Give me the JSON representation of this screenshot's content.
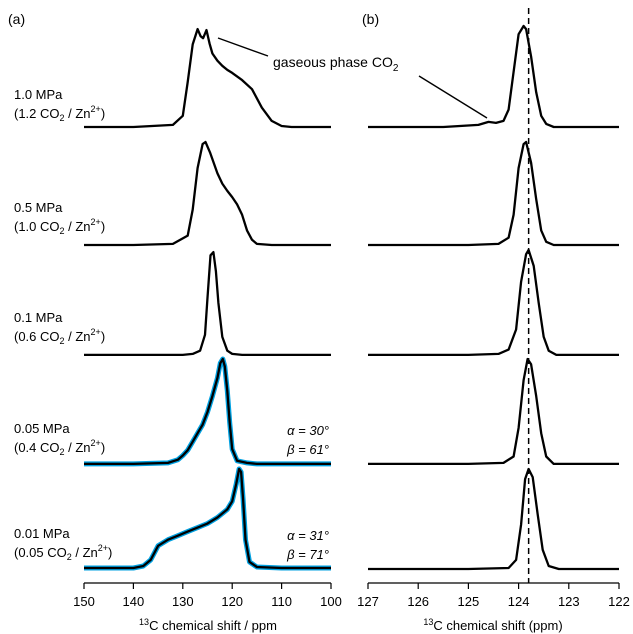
{
  "chart_data": [
    {
      "type": "line",
      "panel": "(a)",
      "xlabel_sup": "13",
      "xlabel_main": "C chemical shift / ppm",
      "xlim": [
        150,
        100
      ],
      "xticks": [
        150,
        140,
        130,
        120,
        110,
        100
      ],
      "annotation": {
        "text_main": "gaseous phase CO",
        "text_sub": "2"
      },
      "series": [
        {
          "pressure": "1.0 MPa",
          "uptake_main": "(1.2 CO",
          "uptake_sub": "2",
          "uptake_mid": " / Zn",
          "uptake_sup": "2+",
          "uptake_end": ")",
          "fit_params": null,
          "x": [
            150,
            140,
            132,
            130,
            129,
            128,
            127,
            126.4,
            125.9,
            125.2,
            124.6,
            124,
            123,
            122,
            121,
            120,
            118,
            116,
            114,
            112,
            110,
            108,
            100
          ],
          "y": [
            0.01,
            0.01,
            0.03,
            0.12,
            0.45,
            0.82,
            0.97,
            0.9,
            0.88,
            0.96,
            0.83,
            0.73,
            0.66,
            0.61,
            0.57,
            0.54,
            0.47,
            0.38,
            0.2,
            0.07,
            0.02,
            0.01,
            0.01
          ]
        },
        {
          "pressure": "0.5 MPa",
          "uptake_main": "(1.0 CO",
          "uptake_sub": "2",
          "uptake_mid": " / Zn",
          "uptake_sup": "2+",
          "uptake_end": ")",
          "fit_params": null,
          "x": [
            150,
            140,
            132,
            129,
            128,
            127,
            126,
            125.4,
            124.5,
            123,
            122,
            121,
            120,
            119,
            118,
            117,
            116,
            115,
            112,
            100
          ],
          "y": [
            0.01,
            0.01,
            0.02,
            0.1,
            0.35,
            0.75,
            0.98,
            1.0,
            0.9,
            0.7,
            0.6,
            0.53,
            0.47,
            0.4,
            0.3,
            0.15,
            0.06,
            0.02,
            0.01,
            0.01
          ]
        },
        {
          "pressure": "0.1 MPa",
          "uptake_main": "(0.6 CO",
          "uptake_sub": "2",
          "uptake_mid": " / Zn",
          "uptake_sup": "2+",
          "uptake_end": ")",
          "fit_params": null,
          "x": [
            150,
            140,
            130,
            128,
            126.5,
            125.5,
            125,
            124.4,
            123.8,
            123.3,
            122.8,
            122,
            121,
            120,
            118,
            100
          ],
          "y": [
            0.01,
            0.01,
            0.01,
            0.02,
            0.05,
            0.2,
            0.55,
            0.95,
            0.98,
            0.8,
            0.5,
            0.18,
            0.05,
            0.02,
            0.01,
            0.01
          ]
        },
        {
          "pressure": "0.05 MPa",
          "uptake_main": "(0.4 CO",
          "uptake_sub": "2",
          "uptake_mid": " / Zn",
          "uptake_sup": "2+",
          "uptake_end": ")",
          "fit_params": {
            "alpha": "α = 30°",
            "beta": "β = 61°"
          },
          "x": [
            150,
            140,
            133,
            131,
            130,
            129,
            128,
            127,
            126,
            125,
            124,
            123,
            122.4,
            121.9,
            121.5,
            121,
            120.5,
            120,
            119,
            117,
            115,
            110,
            100
          ],
          "y": [
            0.01,
            0.01,
            0.02,
            0.05,
            0.09,
            0.14,
            0.22,
            0.3,
            0.38,
            0.5,
            0.65,
            0.82,
            0.96,
            1.0,
            0.93,
            0.7,
            0.4,
            0.15,
            0.04,
            0.02,
            0.01,
            0.01,
            0.01
          ],
          "fit_color": "#00a0e0"
        },
        {
          "pressure": "0.01 MPa",
          "uptake_main": "(0.05 CO",
          "uptake_sub": "2",
          "uptake_mid": " / Zn",
          "uptake_sup": "2+",
          "uptake_end": ")",
          "fit_params": {
            "alpha": "α = 31°",
            "beta": "β = 71°"
          },
          "x": [
            150,
            145,
            140,
            138,
            136.5,
            135,
            133,
            131,
            129,
            127,
            125,
            123,
            121,
            120,
            119.2,
            118.6,
            118.2,
            117.8,
            117.3,
            116.5,
            115,
            110,
            100
          ],
          "y": [
            0.02,
            0.02,
            0.02,
            0.04,
            0.1,
            0.24,
            0.3,
            0.34,
            0.38,
            0.42,
            0.46,
            0.52,
            0.6,
            0.68,
            0.85,
            1.0,
            0.97,
            0.7,
            0.3,
            0.08,
            0.03,
            0.02,
            0.02
          ],
          "fit_color": "#00a0e0"
        }
      ]
    },
    {
      "type": "line",
      "panel": "(b)",
      "xlabel_sup": "13",
      "xlabel_main": "C chemical shift (ppm)",
      "xlim": [
        127,
        122
      ],
      "xticks": [
        127,
        126,
        125,
        124,
        123,
        122
      ],
      "reference_line_ppm": 123.8,
      "series": [
        {
          "pressure": "1.0 MPa",
          "x": [
            127,
            125.5,
            124.8,
            124.6,
            124.45,
            124.3,
            124.2,
            124.1,
            124.0,
            123.9,
            123.85,
            123.75,
            123.65,
            123.55,
            123.45,
            123.3,
            122.5,
            122
          ],
          "y": [
            0.01,
            0.01,
            0.03,
            0.06,
            0.05,
            0.07,
            0.18,
            0.55,
            0.92,
            1.0,
            0.97,
            0.7,
            0.35,
            0.12,
            0.04,
            0.01,
            0.01,
            0.01
          ]
        },
        {
          "pressure": "0.5 MPa",
          "x": [
            127,
            125,
            124.4,
            124.2,
            124.1,
            124.0,
            123.9,
            123.85,
            123.75,
            123.65,
            123.55,
            123.45,
            123.3,
            122.5,
            122
          ],
          "y": [
            0.01,
            0.01,
            0.02,
            0.08,
            0.3,
            0.75,
            0.98,
            1.0,
            0.8,
            0.45,
            0.15,
            0.04,
            0.01,
            0.01,
            0.01
          ]
        },
        {
          "pressure": "0.1 MPa",
          "x": [
            127,
            125,
            124.4,
            124.2,
            124.05,
            123.95,
            123.85,
            123.8,
            123.7,
            123.6,
            123.5,
            123.4,
            123.25,
            122.5,
            122
          ],
          "y": [
            0.01,
            0.01,
            0.02,
            0.06,
            0.25,
            0.7,
            0.96,
            1.0,
            0.85,
            0.5,
            0.18,
            0.05,
            0.01,
            0.01,
            0.01
          ]
        },
        {
          "pressure": "0.05 MPa",
          "x": [
            127,
            125,
            124.3,
            124.1,
            124.0,
            123.9,
            123.82,
            123.75,
            123.65,
            123.55,
            123.45,
            123.3,
            122.5,
            122
          ],
          "y": [
            0.01,
            0.01,
            0.02,
            0.08,
            0.35,
            0.8,
            1.0,
            0.95,
            0.65,
            0.3,
            0.08,
            0.01,
            0.01,
            0.01
          ]
        },
        {
          "pressure": "0.01 MPa",
          "x": [
            127,
            125,
            124.2,
            124.05,
            123.95,
            123.87,
            123.8,
            123.72,
            123.62,
            123.52,
            123.4,
            123.2,
            122.5,
            122
          ],
          "y": [
            0.01,
            0.01,
            0.02,
            0.1,
            0.45,
            0.9,
            1.0,
            0.92,
            0.55,
            0.2,
            0.04,
            0.01,
            0.01,
            0.01
          ]
        }
      ]
    }
  ]
}
